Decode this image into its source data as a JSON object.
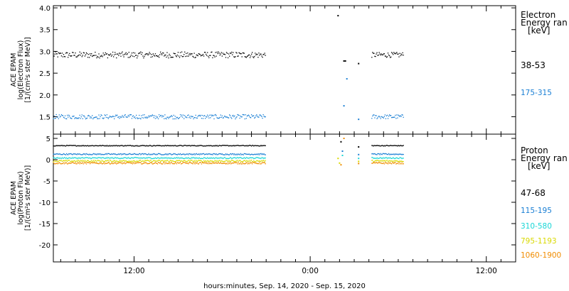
{
  "x_axis": {
    "label": "hours:minutes, Sep. 14, 2020 - Sep. 15, 2020",
    "ticks": [
      {
        "x": 12,
        "label": "12:00"
      },
      {
        "x": 24,
        "label": "0:00"
      },
      {
        "x": 36,
        "label": "12:00"
      }
    ],
    "range": [
      6.5,
      38.0
    ]
  },
  "chart_data": [
    {
      "type": "scatter",
      "panel": "electron",
      "ylabel": [
        "ACE EPAM",
        "log(Electron Flux)",
        "[1/(cm²s ster MeV)]"
      ],
      "ylim": [
        1.1,
        4.05
      ],
      "yticks": [
        {
          "v": 1.5,
          "label": "1.5"
        },
        {
          "v": 2.0,
          "label": "2.0"
        },
        {
          "v": 2.5,
          "label": "2.5"
        },
        {
          "v": 3.0,
          "label": "3.0"
        },
        {
          "v": 3.5,
          "label": "3.5"
        },
        {
          "v": 4.0,
          "label": "4.0"
        }
      ],
      "legend_title": [
        "Electron",
        "Energy ran",
        "[keV]"
      ],
      "series": [
        {
          "name": "38-53",
          "color": "#000000",
          "segments": [
            {
              "x0": 6.5,
              "x1": 21.0,
              "base": 2.92,
              "amp": 0.07
            },
            {
              "x0": 28.2,
              "x1": 30.4,
              "base": 2.92,
              "amp": 0.06
            }
          ],
          "points": [
            {
              "x": 25.9,
              "y": 3.82
            },
            {
              "x": 26.3,
              "y": 2.78
            },
            {
              "x": 26.4,
              "y": 2.78
            },
            {
              "x": 27.3,
              "y": 2.72
            }
          ]
        },
        {
          "name": "175-315",
          "color": "#1a7fd4",
          "segments": [
            {
              "x0": 6.5,
              "x1": 21.0,
              "base": 1.5,
              "amp": 0.05
            },
            {
              "x0": 28.2,
              "x1": 30.4,
              "base": 1.5,
              "amp": 0.05
            }
          ],
          "points": [
            {
              "x": 26.3,
              "y": 1.75
            },
            {
              "x": 26.5,
              "y": 2.37
            },
            {
              "x": 27.3,
              "y": 1.44
            }
          ]
        }
      ]
    },
    {
      "type": "scatter",
      "panel": "proton",
      "ylabel": [
        "ACE EPAM",
        "log(Proton Flux)",
        "[1/(cm²s ster MeV)]"
      ],
      "ylim": [
        -24.0,
        6.0
      ],
      "yticks": [
        {
          "v": 5,
          "label": "5"
        },
        {
          "v": 0,
          "label": "0"
        },
        {
          "v": -5,
          "label": "-5"
        },
        {
          "v": -10,
          "label": "-10"
        },
        {
          "v": -15,
          "label": "-15"
        },
        {
          "v": -20,
          "label": "-20"
        }
      ],
      "legend_title": [
        "Proton",
        "Energy ran",
        "[keV]"
      ],
      "series": [
        {
          "name": "47-68",
          "color": "#000000",
          "segments": [
            {
              "x0": 6.5,
              "x1": 21.0,
              "base": 3.3,
              "amp": 0.1
            },
            {
              "x0": 28.2,
              "x1": 30.4,
              "base": 3.3,
              "amp": 0.1
            }
          ],
          "points": [
            {
              "x": 26.1,
              "y": 4.2
            },
            {
              "x": 27.3,
              "y": 3.0
            }
          ]
        },
        {
          "name": "115-195",
          "color": "#1a7fd4",
          "segments": [
            {
              "x0": 6.5,
              "x1": 21.0,
              "base": 1.3,
              "amp": 0.15
            },
            {
              "x0": 28.2,
              "x1": 30.4,
              "base": 1.3,
              "amp": 0.15
            }
          ],
          "points": [
            {
              "x": 26.2,
              "y": 2.0
            },
            {
              "x": 27.3,
              "y": 1.2
            }
          ]
        },
        {
          "name": "310-580",
          "color": "#19d6d6",
          "segments": [
            {
              "x0": 6.5,
              "x1": 21.0,
              "base": 0.4,
              "amp": 0.15
            },
            {
              "x0": 28.2,
              "x1": 30.4,
              "base": 0.4,
              "amp": 0.15
            }
          ],
          "points": [
            {
              "x": 26.2,
              "y": 1.0
            },
            {
              "x": 27.3,
              "y": 0.3
            }
          ]
        },
        {
          "name": "795-1193",
          "color": "#d9d900",
          "segments": [
            {
              "x0": 6.5,
              "x1": 21.0,
              "base": -0.3,
              "amp": 0.2
            },
            {
              "x0": 28.2,
              "x1": 30.4,
              "base": -0.3,
              "amp": 0.2
            }
          ],
          "points": [
            {
              "x": 25.9,
              "y": 0.3
            },
            {
              "x": 26.0,
              "y": -0.8
            },
            {
              "x": 27.3,
              "y": -0.4
            }
          ]
        },
        {
          "name": "1060-1900",
          "color": "#f08c00",
          "segments": [
            {
              "x0": 6.5,
              "x1": 21.0,
              "base": -0.8,
              "amp": 0.2
            },
            {
              "x0": 28.2,
              "x1": 30.4,
              "base": -0.8,
              "amp": 0.2
            }
          ],
          "points": [
            {
              "x": 26.3,
              "y": 5.0
            },
            {
              "x": 26.1,
              "y": -1.2
            },
            {
              "x": 27.3,
              "y": -0.9
            }
          ]
        }
      ]
    }
  ]
}
